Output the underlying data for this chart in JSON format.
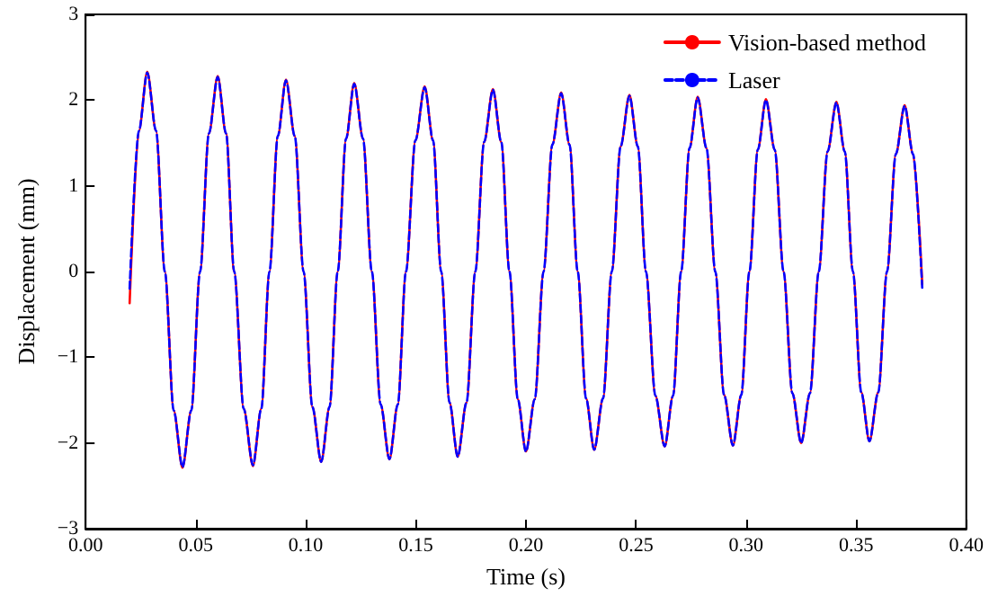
{
  "chart_data": {
    "type": "line",
    "xlabel": "Time (s)",
    "ylabel": "Displacement (mm)",
    "x": [
      0.02,
      0.0242,
      0.028,
      0.032,
      0.036,
      0.04,
      0.044,
      0.048,
      0.052,
      0.056,
      0.06,
      0.0638,
      0.0675,
      0.0718,
      0.076,
      0.0798,
      0.0835,
      0.0873,
      0.091,
      0.095,
      0.099,
      0.103,
      0.107,
      0.1108,
      0.1145,
      0.1183,
      0.122,
      0.126,
      0.13,
      0.134,
      0.138,
      0.1418,
      0.1455,
      0.1498,
      0.154,
      0.1578,
      0.1615,
      0.1653,
      0.169,
      0.173,
      0.177,
      0.181,
      0.185,
      0.1888,
      0.1925,
      0.1963,
      0.2,
      0.204,
      0.208,
      0.212,
      0.216,
      0.2198,
      0.2235,
      0.2273,
      0.231,
      0.235,
      0.239,
      0.243,
      0.247,
      0.2508,
      0.2545,
      0.2588,
      0.263,
      0.2668,
      0.2705,
      0.2743,
      0.278,
      0.282,
      0.286,
      0.29,
      0.294,
      0.2978,
      0.3015,
      0.3053,
      0.309,
      0.313,
      0.317,
      0.321,
      0.325,
      0.329,
      0.333,
      0.337,
      0.341,
      0.3448,
      0.3485,
      0.3523,
      0.356,
      0.36,
      0.364,
      0.368,
      0.372,
      0.3758,
      0.38
    ],
    "series": [
      {
        "name": "Vision-based method",
        "color": "#ff0000",
        "line_style": "solid",
        "values": [
          -0.37,
          1.64,
          2.33,
          1.64,
          0,
          -1.62,
          -2.29,
          -1.62,
          0,
          1.61,
          2.28,
          1.61,
          0,
          -1.6,
          -2.27,
          -1.6,
          0,
          1.58,
          2.24,
          1.58,
          0,
          -1.58,
          -2.22,
          -1.58,
          0,
          1.55,
          2.2,
          1.55,
          0,
          -1.55,
          -2.19,
          -1.55,
          0,
          1.53,
          2.16,
          1.53,
          0,
          -1.53,
          -2.16,
          -1.53,
          0,
          1.51,
          2.13,
          1.51,
          0,
          -1.49,
          -2.1,
          -1.49,
          0,
          1.48,
          2.09,
          1.48,
          0,
          -1.48,
          -2.08,
          -1.48,
          0,
          1.46,
          2.06,
          1.46,
          0,
          -1.45,
          -2.04,
          -1.45,
          0,
          1.44,
          2.04,
          1.44,
          0,
          -1.44,
          -2.03,
          -1.44,
          0,
          1.42,
          2.01,
          1.42,
          0,
          -1.42,
          -2.0,
          -1.42,
          0,
          1.4,
          1.98,
          1.4,
          0,
          -1.41,
          -1.98,
          -1.41,
          0,
          1.37,
          1.94,
          1.37,
          -0.15
        ]
      },
      {
        "name": "Laser",
        "color": "#0000ff",
        "line_style": "dashed",
        "values": [
          -0.2,
          1.64,
          2.32,
          1.64,
          0,
          -1.62,
          -2.28,
          -1.62,
          0,
          1.61,
          2.27,
          1.61,
          0,
          -1.6,
          -2.26,
          -1.6,
          0,
          1.58,
          2.23,
          1.58,
          0,
          -1.58,
          -2.22,
          -1.58,
          0,
          1.55,
          2.19,
          1.55,
          0,
          -1.55,
          -2.19,
          -1.55,
          0,
          1.53,
          2.15,
          1.53,
          0,
          -1.53,
          -2.16,
          -1.53,
          0,
          1.51,
          2.12,
          1.51,
          0,
          -1.49,
          -2.1,
          -1.49,
          0,
          1.48,
          2.08,
          1.48,
          0,
          -1.48,
          -2.08,
          -1.48,
          0,
          1.46,
          2.05,
          1.46,
          0,
          -1.45,
          -2.04,
          -1.45,
          0,
          1.44,
          2.03,
          1.44,
          0,
          -1.44,
          -2.03,
          -1.44,
          0,
          1.42,
          2.0,
          1.42,
          0,
          -1.42,
          -2.0,
          -1.42,
          0,
          1.4,
          1.97,
          1.4,
          0,
          -1.41,
          -1.98,
          -1.41,
          0,
          1.37,
          1.93,
          1.37,
          -0.2
        ]
      }
    ],
    "xlim": [
      0,
      0.4
    ],
    "xticks": [
      {
        "value": 0,
        "label": "0.00"
      },
      {
        "value": 0.05,
        "label": "0.05"
      },
      {
        "value": 0.1,
        "label": "0.10"
      },
      {
        "value": 0.15,
        "label": "0.15"
      },
      {
        "value": 0.2,
        "label": "0.20"
      },
      {
        "value": 0.25,
        "label": "0.25"
      },
      {
        "value": 0.3,
        "label": "0.30"
      },
      {
        "value": 0.35,
        "label": "0.35"
      },
      {
        "value": 0.4,
        "label": "0.40"
      }
    ],
    "ylim": [
      -3,
      3
    ],
    "yticks": [
      -3,
      -2,
      -1,
      0,
      1,
      2,
      3
    ],
    "legend": "top right",
    "grid": false,
    "marker": "none"
  }
}
